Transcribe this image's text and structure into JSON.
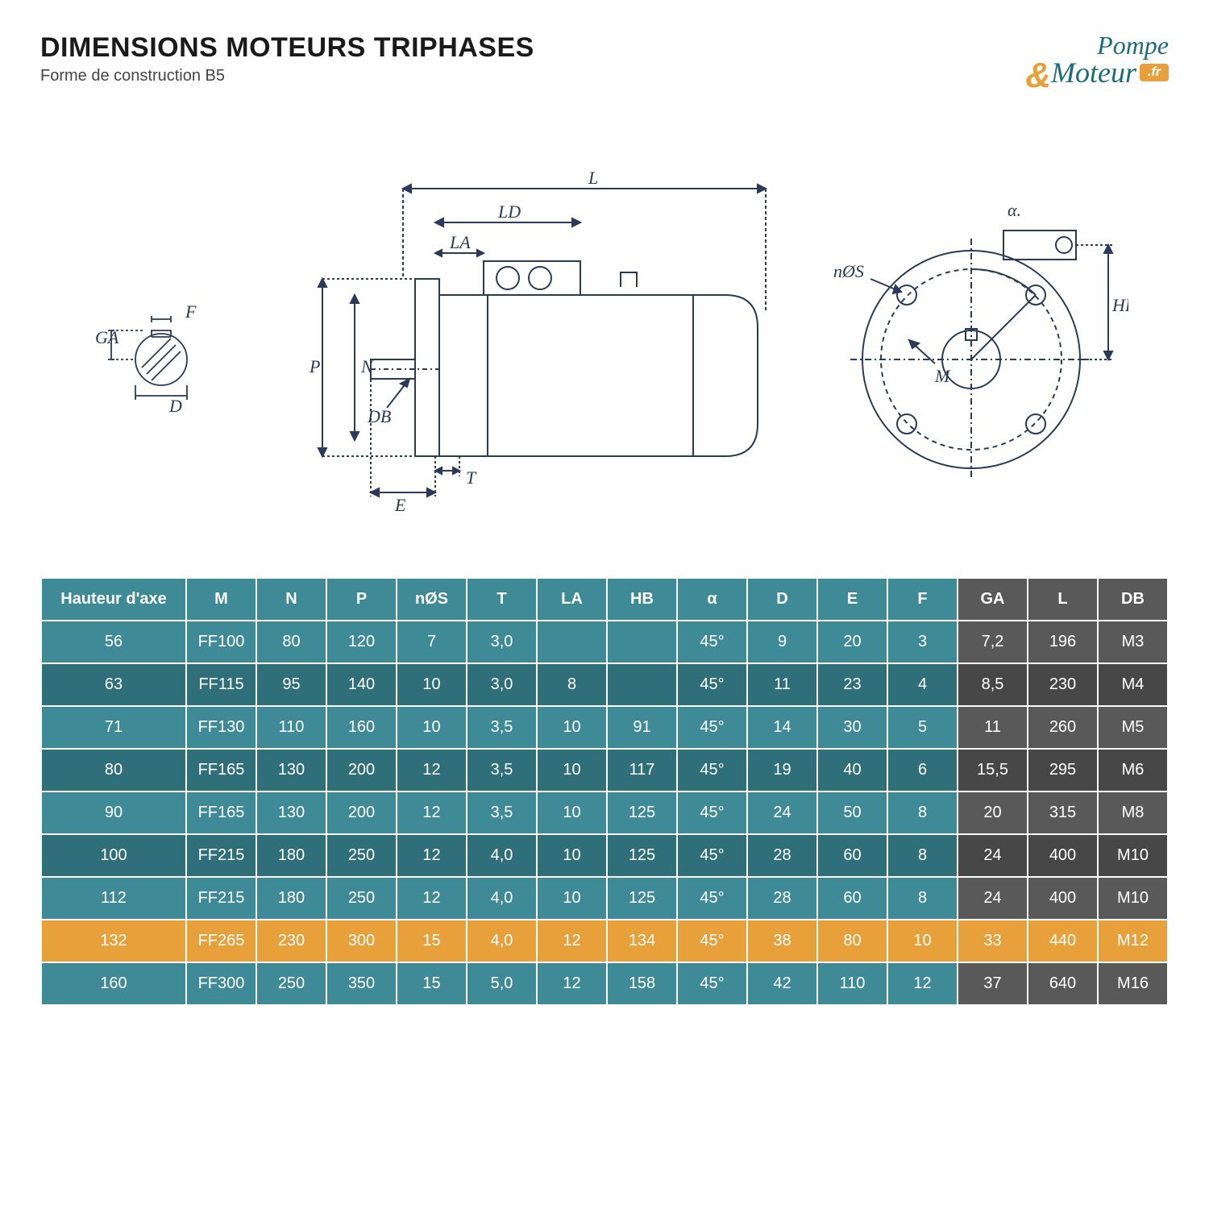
{
  "header": {
    "title": "DIMENSIONS MOTEURS TRIPHASES",
    "subtitle": "Forme de construction B5"
  },
  "logo": {
    "line1": "Pompe",
    "line2": "Moteur",
    "badge": ".fr"
  },
  "diagram_labels": {
    "shaft": {
      "GA": "GA",
      "F": "F",
      "D": "D"
    },
    "side": {
      "L": "L",
      "LD": "LD",
      "LA": "LA",
      "P": "P",
      "N": "N",
      "DB": "DB",
      "E": "E",
      "T": "T"
    },
    "front": {
      "alpha": "α.",
      "nOS": "nØS",
      "M": "M",
      "HB": "HB"
    }
  },
  "table": {
    "columns": [
      "Hauteur d'axe",
      "M",
      "N",
      "P",
      "nØS",
      "T",
      "LA",
      "HB",
      "α",
      "D",
      "E",
      "F",
      "GA",
      "L",
      "DB"
    ],
    "gray_start_index": 12,
    "highlight_row_index": 7,
    "rows": [
      [
        "56",
        "FF100",
        "80",
        "120",
        "7",
        "3,0",
        "",
        "",
        "45°",
        "9",
        "20",
        "3",
        "7,2",
        "196",
        "M3"
      ],
      [
        "63",
        "FF115",
        "95",
        "140",
        "10",
        "3,0",
        "8",
        "",
        "45°",
        "11",
        "23",
        "4",
        "8,5",
        "230",
        "M4"
      ],
      [
        "71",
        "FF130",
        "110",
        "160",
        "10",
        "3,5",
        "10",
        "91",
        "45°",
        "14",
        "30",
        "5",
        "11",
        "260",
        "M5"
      ],
      [
        "80",
        "FF165",
        "130",
        "200",
        "12",
        "3,5",
        "10",
        "117",
        "45°",
        "19",
        "40",
        "6",
        "15,5",
        "295",
        "M6"
      ],
      [
        "90",
        "FF165",
        "130",
        "200",
        "12",
        "3,5",
        "10",
        "125",
        "45°",
        "24",
        "50",
        "8",
        "20",
        "315",
        "M8"
      ],
      [
        "100",
        "FF215",
        "180",
        "250",
        "12",
        "4,0",
        "10",
        "125",
        "45°",
        "28",
        "60",
        "8",
        "24",
        "400",
        "M10"
      ],
      [
        "112",
        "FF215",
        "180",
        "250",
        "12",
        "4,0",
        "10",
        "125",
        "45°",
        "28",
        "60",
        "8",
        "24",
        "400",
        "M10"
      ],
      [
        "132",
        "FF265",
        "230",
        "300",
        "15",
        "4,0",
        "12",
        "134",
        "45°",
        "38",
        "80",
        "10",
        "33",
        "440",
        "M12"
      ],
      [
        "160",
        "FF300",
        "250",
        "350",
        "15",
        "5,0",
        "12",
        "158",
        "45°",
        "42",
        "110",
        "12",
        "37",
        "640",
        "M16"
      ]
    ]
  },
  "colors": {
    "teal": "#3e8a97",
    "teal_dark": "#2e6f7a",
    "gray": "#595959",
    "gray_dark": "#474747",
    "highlight": "#e7a03a",
    "stroke": "#2a3a5a"
  }
}
